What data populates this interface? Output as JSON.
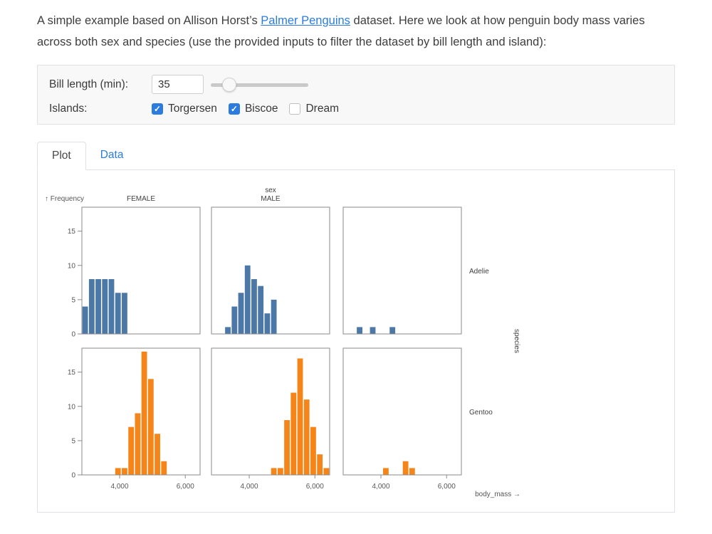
{
  "intro": {
    "before_link": "A simple example based on Allison Horst’s ",
    "link_text": "Palmer Penguins",
    "after_link": " dataset. Here we look at how penguin body mass varies across both sex and species (use the provided inputs to filter the dataset by bill length and island):"
  },
  "filters": {
    "bill_length_label": "Bill length (min):",
    "bill_length_value": "35",
    "slider": {
      "percent": 19
    },
    "islands_label": "Islands:",
    "islands": [
      {
        "label": "Torgersen",
        "checked": true
      },
      {
        "label": "Biscoe",
        "checked": true
      },
      {
        "label": "Dream",
        "checked": false
      }
    ]
  },
  "tabs": [
    {
      "label": "Plot",
      "active": true
    },
    {
      "label": "Data",
      "active": false
    }
  ],
  "accent_color": "#2b7cde",
  "chart_data": {
    "type": "bar",
    "subtype": "faceted-histogram",
    "title": "",
    "xlabel": "body_mass →",
    "ylabel": "↑ Frequency",
    "col_header": "sex",
    "col_labels": [
      "FEMALE",
      "MALE",
      ""
    ],
    "row_labels": [
      "Adelie",
      "Gentoo"
    ],
    "row_label_axis": "species",
    "x_domain": [
      2850,
      6450
    ],
    "x_ticks": [
      4000,
      6000
    ],
    "x_tick_labels": [
      "4,000",
      "6,000"
    ],
    "y_domain": [
      0,
      18.5
    ],
    "y_ticks": [
      0,
      5,
      10,
      15
    ],
    "bin_width": 200,
    "grid": false,
    "colors": {
      "Adelie": "#4c78a8",
      "Gentoo": "#f58518"
    },
    "facets": [
      {
        "species": "Adelie",
        "sex": "FEMALE",
        "row": 0,
        "col": 0,
        "color": "#4c78a8",
        "bins": [
          [
            2850,
            4
          ],
          [
            3050,
            8
          ],
          [
            3250,
            8
          ],
          [
            3450,
            8
          ],
          [
            3650,
            8
          ],
          [
            3850,
            6
          ],
          [
            4050,
            6
          ]
        ]
      },
      {
        "species": "Adelie",
        "sex": "MALE",
        "row": 0,
        "col": 1,
        "color": "#4c78a8",
        "bins": [
          [
            3250,
            1
          ],
          [
            3450,
            4
          ],
          [
            3650,
            6
          ],
          [
            3850,
            10
          ],
          [
            4050,
            8
          ],
          [
            4250,
            7
          ],
          [
            4450,
            3
          ],
          [
            4650,
            5
          ]
        ]
      },
      {
        "species": "Adelie",
        "sex": "NA",
        "row": 0,
        "col": 2,
        "color": "#4c78a8",
        "bins": [
          [
            3250,
            1
          ],
          [
            3650,
            1
          ],
          [
            4250,
            1
          ]
        ]
      },
      {
        "species": "Gentoo",
        "sex": "FEMALE",
        "row": 1,
        "col": 0,
        "color": "#f58518",
        "bins": [
          [
            3850,
            1
          ],
          [
            4050,
            1
          ],
          [
            4250,
            7
          ],
          [
            4450,
            9
          ],
          [
            4650,
            18
          ],
          [
            4850,
            14
          ],
          [
            5050,
            6
          ],
          [
            5250,
            2
          ]
        ]
      },
      {
        "species": "Gentoo",
        "sex": "MALE",
        "row": 1,
        "col": 1,
        "color": "#f58518",
        "bins": [
          [
            4650,
            1
          ],
          [
            4850,
            1
          ],
          [
            5050,
            8
          ],
          [
            5250,
            12
          ],
          [
            5450,
            17
          ],
          [
            5650,
            11
          ],
          [
            5850,
            7
          ],
          [
            6050,
            3
          ],
          [
            6250,
            1
          ]
        ]
      },
      {
        "species": "Gentoo",
        "sex": "NA",
        "row": 1,
        "col": 2,
        "color": "#f58518",
        "bins": [
          [
            4050,
            1
          ],
          [
            4650,
            2
          ],
          [
            4850,
            1
          ]
        ]
      }
    ]
  }
}
